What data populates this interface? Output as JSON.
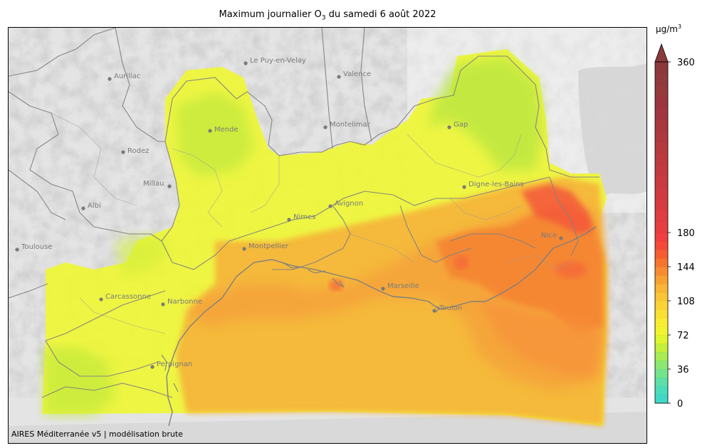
{
  "title": {
    "prefix": "Maximum journalier O",
    "subscript": "3",
    "suffix": " du samedi 6 août 2022"
  },
  "credit": "AIRES Méditerranée v5 | modélisation brute",
  "colorbar": {
    "unit_base": "µg/m",
    "unit_exp": "3",
    "ticks": [
      "0",
      "36",
      "72",
      "108",
      "144",
      "180",
      "360"
    ],
    "colors": [
      "#40d9c8",
      "#4bdcbb",
      "#5ddfa7",
      "#73e38c",
      "#8ae873",
      "#a5ec55",
      "#c3f03b",
      "#dff52d",
      "#f2f52e",
      "#f8ec31",
      "#fbe034",
      "#fcd336",
      "#fbc436",
      "#f9b535",
      "#f8a133",
      "#f88b31",
      "#f7742f",
      "#f75d31",
      "#f64a38",
      "#f04040",
      "#e73e40",
      "#df3d40",
      "#d73b3f",
      "#cf3b3f",
      "#c93b3f",
      "#c33a3e",
      "#bd393e",
      "#b6393e",
      "#af383e",
      "#a8373e",
      "#a2363e",
      "#9c363e",
      "#973a3c",
      "#913a3b",
      "#8b393a"
    ],
    "over_color": "#8b3a3a"
  },
  "cities": [
    {
      "name": "Le Puy-en-Velay"
    },
    {
      "name": "Aurillac"
    },
    {
      "name": "Valence"
    },
    {
      "name": "Mende"
    },
    {
      "name": "Montelimar"
    },
    {
      "name": "Gap"
    },
    {
      "name": "Rodez"
    },
    {
      "name": "Millau"
    },
    {
      "name": "Digne-les-Bains"
    },
    {
      "name": "Albi"
    },
    {
      "name": "Avignon"
    },
    {
      "name": "Nimes"
    },
    {
      "name": "Nice"
    },
    {
      "name": "Toulouse"
    },
    {
      "name": "Montpellier"
    },
    {
      "name": "Marseille"
    },
    {
      "name": "Carcassonne"
    },
    {
      "name": "Narbonne"
    },
    {
      "name": "Toulon"
    },
    {
      "name": "Perpignan"
    }
  ]
}
